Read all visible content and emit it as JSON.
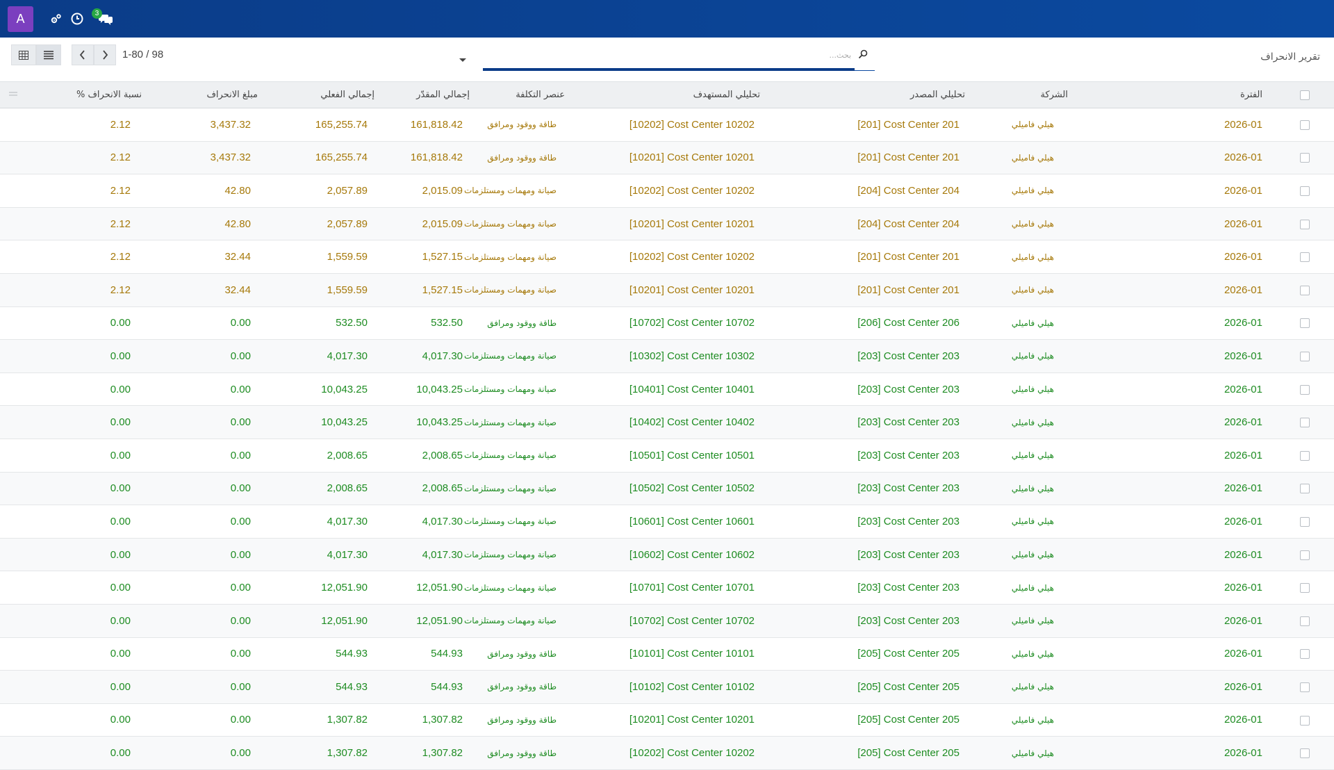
{
  "navbar": {
    "avatar_letter": "A",
    "messages_badge": "3",
    "bg_color": "#0b4aa0",
    "icons": [
      "activity-cog-icon",
      "clock-icon",
      "chat-icon"
    ]
  },
  "control": {
    "title": "تقرير الانحراف",
    "search_placeholder": "بحث...",
    "pager_value": "1-80 / 98"
  },
  "table": {
    "headers": {
      "period": "الفترة",
      "company": "الشركة",
      "source_analytic": "تحليلي المصدر",
      "target_analytic": "تحليلي المستهدف",
      "cost_element": "عنصر التكلفة",
      "planned_total": "إجمالي المقدّر",
      "actual_total": "إجمالي الفعلي",
      "variance_amount": "مبلغ الانحراف",
      "variance_pct": "نسبة الانحراف %"
    },
    "rows": [
      {
        "status": "warn",
        "period": "2026-01",
        "company": "هيلي فاميلي",
        "source": "[201] Cost Center 201",
        "target": "[10202] Cost Center 10202",
        "element": "طاقة ووقود ومرافق",
        "planned": "161,818.42",
        "actual": "165,255.74",
        "variance": "3,437.32",
        "pct": "2.12"
      },
      {
        "status": "warn",
        "period": "2026-01",
        "company": "هيلي فاميلي",
        "source": "[201] Cost Center 201",
        "target": "[10201] Cost Center 10201",
        "element": "طاقة ووقود ومرافق",
        "planned": "161,818.42",
        "actual": "165,255.74",
        "variance": "3,437.32",
        "pct": "2.12"
      },
      {
        "status": "warn",
        "period": "2026-01",
        "company": "هيلي فاميلي",
        "source": "[204] Cost Center 204",
        "target": "[10202] Cost Center 10202",
        "element": "صيانة ومهمات ومستلزمات",
        "planned": "2,015.09",
        "actual": "2,057.89",
        "variance": "42.80",
        "pct": "2.12"
      },
      {
        "status": "warn",
        "period": "2026-01",
        "company": "هيلي فاميلي",
        "source": "[204] Cost Center 204",
        "target": "[10201] Cost Center 10201",
        "element": "صيانة ومهمات ومستلزمات",
        "planned": "2,015.09",
        "actual": "2,057.89",
        "variance": "42.80",
        "pct": "2.12"
      },
      {
        "status": "warn",
        "period": "2026-01",
        "company": "هيلي فاميلي",
        "source": "[201] Cost Center 201",
        "target": "[10202] Cost Center 10202",
        "element": "صيانة ومهمات ومستلزمات",
        "planned": "1,527.15",
        "actual": "1,559.59",
        "variance": "32.44",
        "pct": "2.12"
      },
      {
        "status": "warn",
        "period": "2026-01",
        "company": "هيلي فاميلي",
        "source": "[201] Cost Center 201",
        "target": "[10201] Cost Center 10201",
        "element": "صيانة ومهمات ومستلزمات",
        "planned": "1,527.15",
        "actual": "1,559.59",
        "variance": "32.44",
        "pct": "2.12"
      },
      {
        "status": "ok",
        "period": "2026-01",
        "company": "هيلي فاميلي",
        "source": "[206] Cost Center 206",
        "target": "[10702] Cost Center 10702",
        "element": "طاقة ووقود ومرافق",
        "planned": "532.50",
        "actual": "532.50",
        "variance": "0.00",
        "pct": "0.00"
      },
      {
        "status": "ok",
        "period": "2026-01",
        "company": "هيلي فاميلي",
        "source": "[203] Cost Center 203",
        "target": "[10302] Cost Center 10302",
        "element": "صيانة ومهمات ومستلزمات",
        "planned": "4,017.30",
        "actual": "4,017.30",
        "variance": "0.00",
        "pct": "0.00"
      },
      {
        "status": "ok",
        "period": "2026-01",
        "company": "هيلي فاميلي",
        "source": "[203] Cost Center 203",
        "target": "[10401] Cost Center 10401",
        "element": "صيانة ومهمات ومستلزمات",
        "planned": "10,043.25",
        "actual": "10,043.25",
        "variance": "0.00",
        "pct": "0.00"
      },
      {
        "status": "ok",
        "period": "2026-01",
        "company": "هيلي فاميلي",
        "source": "[203] Cost Center 203",
        "target": "[10402] Cost Center 10402",
        "element": "صيانة ومهمات ومستلزمات",
        "planned": "10,043.25",
        "actual": "10,043.25",
        "variance": "0.00",
        "pct": "0.00"
      },
      {
        "status": "ok",
        "period": "2026-01",
        "company": "هيلي فاميلي",
        "source": "[203] Cost Center 203",
        "target": "[10501] Cost Center 10501",
        "element": "صيانة ومهمات ومستلزمات",
        "planned": "2,008.65",
        "actual": "2,008.65",
        "variance": "0.00",
        "pct": "0.00"
      },
      {
        "status": "ok",
        "period": "2026-01",
        "company": "هيلي فاميلي",
        "source": "[203] Cost Center 203",
        "target": "[10502] Cost Center 10502",
        "element": "صيانة ومهمات ومستلزمات",
        "planned": "2,008.65",
        "actual": "2,008.65",
        "variance": "0.00",
        "pct": "0.00"
      },
      {
        "status": "ok",
        "period": "2026-01",
        "company": "هيلي فاميلي",
        "source": "[203] Cost Center 203",
        "target": "[10601] Cost Center 10601",
        "element": "صيانة ومهمات ومستلزمات",
        "planned": "4,017.30",
        "actual": "4,017.30",
        "variance": "0.00",
        "pct": "0.00"
      },
      {
        "status": "ok",
        "period": "2026-01",
        "company": "هيلي فاميلي",
        "source": "[203] Cost Center 203",
        "target": "[10602] Cost Center 10602",
        "element": "صيانة ومهمات ومستلزمات",
        "planned": "4,017.30",
        "actual": "4,017.30",
        "variance": "0.00",
        "pct": "0.00"
      },
      {
        "status": "ok",
        "period": "2026-01",
        "company": "هيلي فاميلي",
        "source": "[203] Cost Center 203",
        "target": "[10701] Cost Center 10701",
        "element": "صيانة ومهمات ومستلزمات",
        "planned": "12,051.90",
        "actual": "12,051.90",
        "variance": "0.00",
        "pct": "0.00"
      },
      {
        "status": "ok",
        "period": "2026-01",
        "company": "هيلي فاميلي",
        "source": "[203] Cost Center 203",
        "target": "[10702] Cost Center 10702",
        "element": "صيانة ومهمات ومستلزمات",
        "planned": "12,051.90",
        "actual": "12,051.90",
        "variance": "0.00",
        "pct": "0.00"
      },
      {
        "status": "ok",
        "period": "2026-01",
        "company": "هيلي فاميلي",
        "source": "[205] Cost Center 205",
        "target": "[10101] Cost Center 10101",
        "element": "طاقة ووقود ومرافق",
        "planned": "544.93",
        "actual": "544.93",
        "variance": "0.00",
        "pct": "0.00"
      },
      {
        "status": "ok",
        "period": "2026-01",
        "company": "هيلي فاميلي",
        "source": "[205] Cost Center 205",
        "target": "[10102] Cost Center 10102",
        "element": "طاقة ووقود ومرافق",
        "planned": "544.93",
        "actual": "544.93",
        "variance": "0.00",
        "pct": "0.00"
      },
      {
        "status": "ok",
        "period": "2026-01",
        "company": "هيلي فاميلي",
        "source": "[205] Cost Center 205",
        "target": "[10201] Cost Center 10201",
        "element": "طاقة ووقود ومرافق",
        "planned": "1,307.82",
        "actual": "1,307.82",
        "variance": "0.00",
        "pct": "0.00"
      },
      {
        "status": "ok",
        "period": "2026-01",
        "company": "هيلي فاميلي",
        "source": "[205] Cost Center 205",
        "target": "[10202] Cost Center 10202",
        "element": "طاقة ووقود ومرافق",
        "planned": "1,307.82",
        "actual": "1,307.82",
        "variance": "0.00",
        "pct": "0.00"
      }
    ]
  }
}
